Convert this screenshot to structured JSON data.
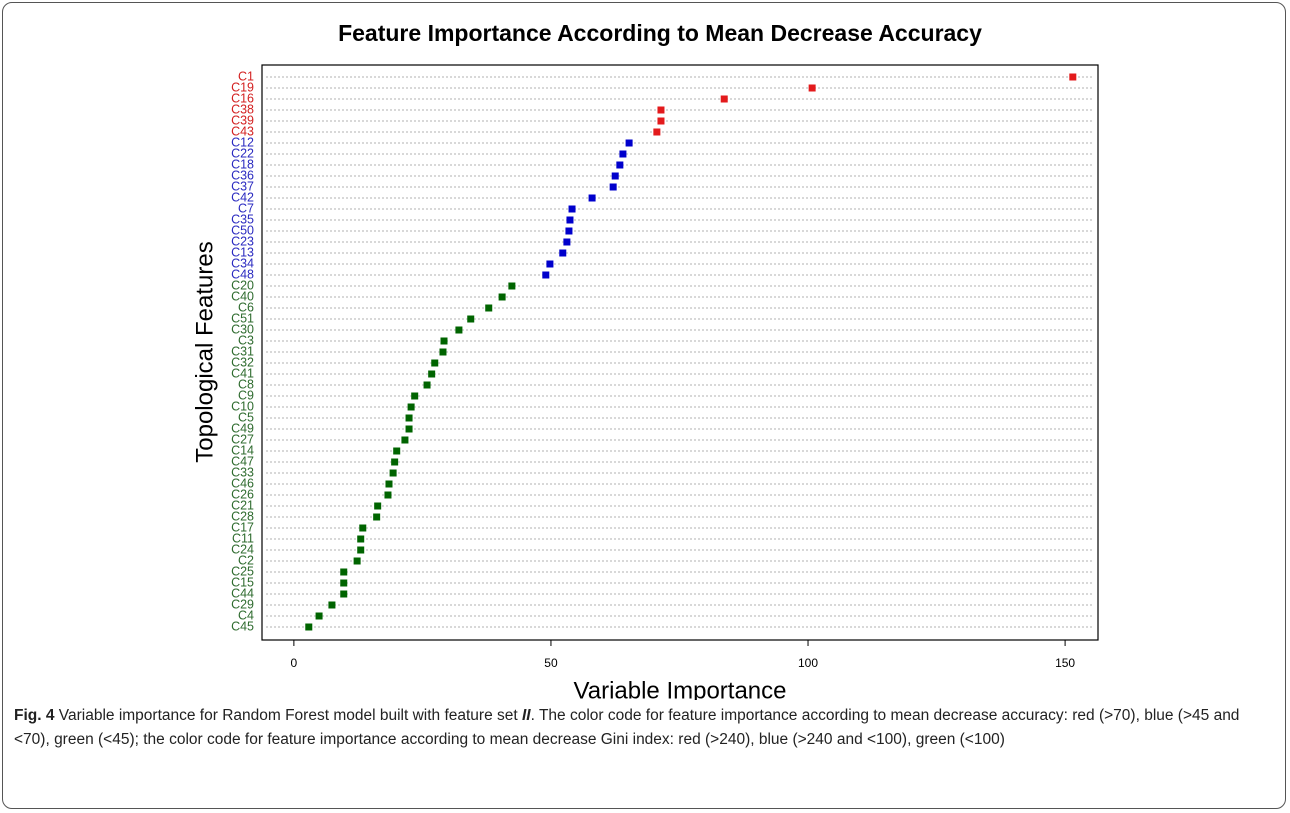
{
  "chart_data": {
    "type": "dotplot",
    "title": "Feature Importance According to Mean Decrease Accuracy",
    "x_label": "Variable Importance",
    "y_label": "Topological Features",
    "categories": [
      "C1",
      "C19",
      "C16",
      "C38",
      "C39",
      "C43",
      "C12",
      "C22",
      "C18",
      "C36",
      "C37",
      "C42",
      "C7",
      "C35",
      "C50",
      "C23",
      "C13",
      "C34",
      "C48",
      "C20",
      "C40",
      "C6",
      "C51",
      "C30",
      "C3",
      "C31",
      "C32",
      "C41",
      "C8",
      "C9",
      "C10",
      "C5",
      "C49",
      "C27",
      "C14",
      "C47",
      "C33",
      "C46",
      "C26",
      "C21",
      "C28",
      "C17",
      "C11",
      "C24",
      "C2",
      "C25",
      "C15",
      "C44",
      "C29",
      "C4",
      "C45"
    ],
    "values": [
      151.5,
      100.8,
      83.7,
      71.4,
      71.4,
      70.6,
      65.2,
      64.0,
      63.4,
      62.5,
      62.1,
      58.0,
      54.1,
      53.7,
      53.5,
      53.1,
      52.3,
      49.8,
      49.0,
      42.4,
      40.5,
      37.9,
      34.4,
      32.1,
      29.2,
      29.0,
      27.4,
      26.8,
      25.9,
      23.5,
      22.8,
      22.4,
      22.4,
      21.6,
      20.0,
      19.6,
      19.3,
      18.5,
      18.3,
      16.3,
      16.1,
      13.4,
      13.0,
      13.0,
      12.3,
      9.7,
      9.7,
      9.7,
      7.4,
      4.9,
      2.9
    ],
    "colors": [
      "#e31a1c",
      "#e31a1c",
      "#e31a1c",
      "#e31a1c",
      "#e31a1c",
      "#e31a1c",
      "#0000cc",
      "#0000cc",
      "#0000cc",
      "#0000cc",
      "#0000cc",
      "#0000cc",
      "#0000cc",
      "#0000cc",
      "#0000cc",
      "#0000cc",
      "#0000cc",
      "#0000cc",
      "#0000cc",
      "#006400",
      "#006400",
      "#006400",
      "#006400",
      "#006400",
      "#006400",
      "#006400",
      "#006400",
      "#006400",
      "#006400",
      "#006400",
      "#006400",
      "#006400",
      "#006400",
      "#006400",
      "#006400",
      "#006400",
      "#006400",
      "#006400",
      "#006400",
      "#006400",
      "#006400",
      "#006400",
      "#006400",
      "#006400",
      "#006400",
      "#006400",
      "#006400",
      "#006400",
      "#006400",
      "#006400",
      "#006400"
    ],
    "label_colors": [
      "#d32020",
      "#d32020",
      "#d32020",
      "#d32020",
      "#d32020",
      "#d32020",
      "#2a2ac0",
      "#2a2ac0",
      "#2a2ac0",
      "#2a2ac0",
      "#2a2ac0",
      "#2a2ac0",
      "#2a2ac0",
      "#2a2ac0",
      "#2a2ac0",
      "#2a2ac0",
      "#2a2ac0",
      "#2a2ac0",
      "#2a2ac0",
      "#2e6b2e",
      "#2e6b2e",
      "#2e6b2e",
      "#2e6b2e",
      "#2e6b2e",
      "#2e6b2e",
      "#2e6b2e",
      "#2e6b2e",
      "#2e6b2e",
      "#2e6b2e",
      "#2e6b2e",
      "#2e6b2e",
      "#2e6b2e",
      "#2e6b2e",
      "#2e6b2e",
      "#2e6b2e",
      "#2e6b2e",
      "#2e6b2e",
      "#2e6b2e",
      "#2e6b2e",
      "#2e6b2e",
      "#2e6b2e",
      "#2e6b2e",
      "#2e6b2e",
      "#2e6b2e",
      "#2e6b2e",
      "#2e6b2e",
      "#2e6b2e",
      "#2e6b2e",
      "#2e6b2e",
      "#2e6b2e",
      "#2e6b2e"
    ],
    "xlim": [
      -6.2,
      156.4
    ],
    "xticks": [
      0,
      50,
      100,
      150
    ],
    "grid": true
  },
  "caption": {
    "label": "Fig. 4",
    "text_before": " Variable importance for Random Forest model built with feature set ",
    "emphasis": "II",
    "text_after": ". The color code for feature importance according to mean decrease accuracy: red (>70), blue (>45 and <70), green (<45); the color code for feature importance according to mean decrease Gini index: red (>240), blue (>240 and <100), green (<100)"
  }
}
